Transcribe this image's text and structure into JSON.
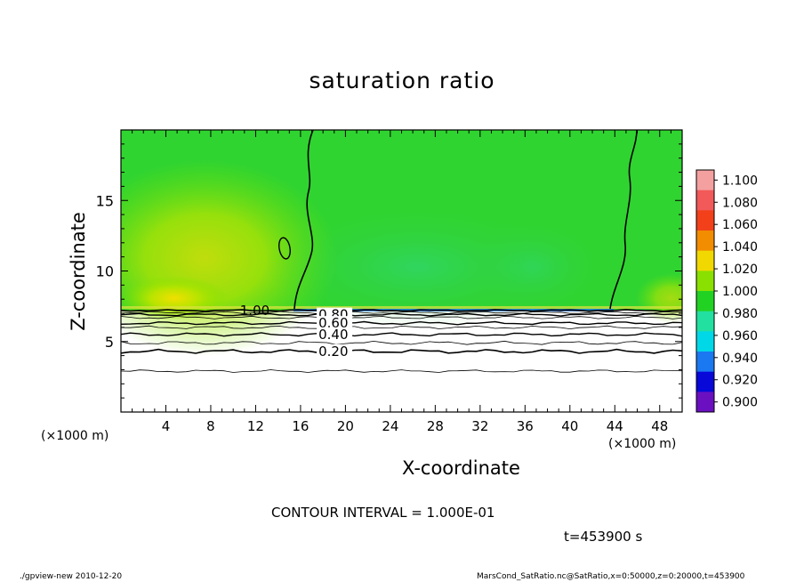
{
  "chart_data": {
    "type": "heatmap",
    "title": "saturation ratio",
    "xlabel": "X-coordinate",
    "ylabel": "Z-coordinate",
    "x_unit": "(×1000 m)",
    "xlim": [
      0,
      50
    ],
    "ylim": [
      0,
      20
    ],
    "x_ticks": [
      4,
      8,
      12,
      16,
      20,
      24,
      28,
      32,
      36,
      40,
      44,
      48
    ],
    "y_ticks": [
      5,
      10,
      15
    ],
    "colorbar": {
      "levels": [
        "1.100",
        "1.080",
        "1.060",
        "1.040",
        "1.020",
        "1.000",
        "0.980",
        "0.960",
        "0.940",
        "0.920",
        "0.900"
      ],
      "colors": [
        "#f4a0a0",
        "#f25a5a",
        "#f2401a",
        "#f28c00",
        "#f0d800",
        "#8ae000",
        "#22d222",
        "#22e0a0",
        "#00d8e8",
        "#1a78f0",
        "#0808d8",
        "#6a10c0"
      ]
    },
    "contour_labels": [
      {
        "label": "1.00",
        "x": 10.6,
        "z": 7.2
      },
      {
        "label": "0.80",
        "x": 17.6,
        "z": 6.9
      },
      {
        "label": "0.60",
        "x": 17.6,
        "z": 6.3
      },
      {
        "label": "0.40",
        "x": 17.6,
        "z": 5.5
      },
      {
        "label": "0.20",
        "x": 17.6,
        "z": 4.3
      }
    ],
    "contour_interval": "CONTOUR INTERVAL = 1.000E-01",
    "time": "t=453900 s"
  },
  "footer": {
    "left": "./gpview-new   2010-12-20",
    "right": "MarsCond_SatRatio.nc@SatRatio,x=0:50000,z=0:20000,t=453900"
  }
}
